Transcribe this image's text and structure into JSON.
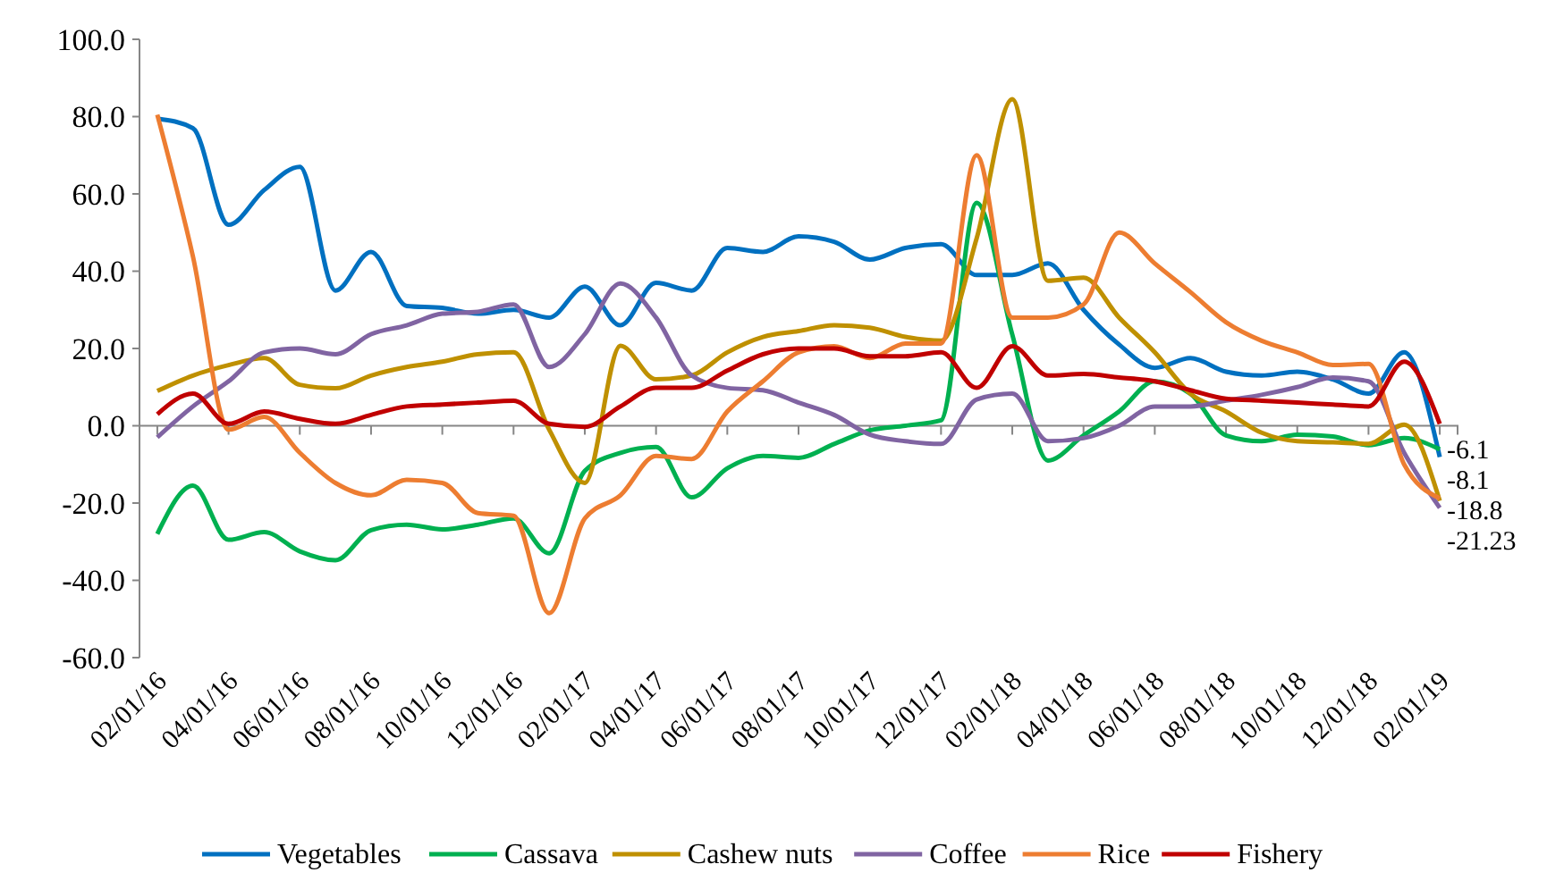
{
  "chart_data": {
    "type": "line",
    "categories": [
      "02/01/16",
      null,
      "04/01/16",
      null,
      "06/01/16",
      null,
      "08/01/16",
      null,
      "10/01/16",
      null,
      "12/01/16",
      null,
      "02/01/17",
      null,
      "04/01/17",
      null,
      "06/01/17",
      null,
      "08/01/17",
      null,
      "10/01/17",
      null,
      "12/01/17",
      null,
      "02/01/18",
      null,
      "04/01/18",
      null,
      "06/01/18",
      null,
      "08/01/18",
      null,
      "10/01/18",
      null,
      "12/01/18",
      null,
      "02/01/19"
    ],
    "series": [
      {
        "name": "Vegetables",
        "color": "#0070c0",
        "values": [
          79.5,
          77,
          52,
          61,
          67,
          35,
          45,
          31,
          30.5,
          29,
          30,
          28,
          36,
          26,
          37,
          35,
          46,
          45,
          49,
          47.6,
          43,
          46,
          47,
          39,
          39,
          42,
          30,
          21,
          15,
          17.5,
          14,
          13,
          14,
          12,
          8.3,
          19,
          -8.1
        ],
        "value_labels": [
          null,
          null,
          null,
          null,
          null,
          null,
          null,
          null,
          null,
          null,
          null,
          null,
          null,
          null,
          null,
          null,
          null,
          null,
          null,
          null,
          null,
          null,
          null,
          null,
          null,
          null,
          null,
          null,
          null,
          null,
          null,
          null,
          null,
          null,
          null,
          null,
          "-8.1"
        ]
      },
      {
        "name": "Cassava",
        "color": "#00b050",
        "values": [
          -28,
          -15.5,
          -29.5,
          -27.5,
          -32.5,
          -34.8,
          -27,
          -25.6,
          -26.8,
          -25.6,
          -24,
          -33,
          -11.7,
          -7,
          -5.5,
          -18.5,
          -11,
          -7.8,
          -8.3,
          -4.7,
          -1.2,
          0,
          1.4,
          57.7,
          23.6,
          -9,
          -2.5,
          3.7,
          11.5,
          8.3,
          -2.5,
          -4,
          -2.3,
          -2.8,
          -5,
          -3.2,
          -6.1
        ],
        "value_labels": [
          null,
          null,
          null,
          null,
          null,
          null,
          null,
          null,
          null,
          null,
          null,
          null,
          null,
          null,
          null,
          null,
          null,
          null,
          null,
          null,
          null,
          null,
          null,
          null,
          null,
          null,
          null,
          null,
          null,
          null,
          null,
          null,
          null,
          null,
          null,
          null,
          "-6.1"
        ]
      },
      {
        "name": "Cashew nuts",
        "color": "#bf9000",
        "values": [
          9,
          13,
          15.7,
          17.5,
          10.6,
          9.7,
          13,
          15.2,
          16.6,
          18.5,
          19,
          -1,
          -14.8,
          20.7,
          12,
          13,
          19,
          23,
          24.5,
          26,
          25.4,
          23,
          22,
          48.5,
          84.5,
          37.5,
          38.3,
          28,
          19,
          8.3,
          3.7,
          -1.8,
          -4,
          -4.3,
          -4.7,
          0.3,
          -19.4
        ]
      },
      {
        "name": "Coffee",
        "color": "#8064a2",
        "values": [
          -3,
          5,
          11.5,
          19,
          20,
          18.5,
          23.7,
          26,
          29,
          29.5,
          31.4,
          15.2,
          23.7,
          36.8,
          28,
          13,
          9.8,
          9.2,
          6,
          2.8,
          -2.3,
          -4,
          -4.7,
          6.8,
          8.3,
          -4,
          -3.2,
          0,
          5,
          5,
          6.5,
          8,
          10,
          12.5,
          11.5,
          -7,
          -21.23
        ],
        "value_labels": [
          null,
          null,
          null,
          null,
          null,
          null,
          null,
          null,
          null,
          null,
          null,
          null,
          null,
          null,
          null,
          null,
          null,
          null,
          null,
          null,
          null,
          null,
          null,
          null,
          null,
          null,
          null,
          null,
          null,
          null,
          null,
          null,
          null,
          null,
          null,
          null,
          "-21.23"
        ]
      },
      {
        "name": "Rice",
        "color": "#ed7d31",
        "values": [
          80.5,
          43.8,
          -1,
          2.3,
          -7,
          -14.8,
          -18,
          -14,
          -14.8,
          -22.6,
          -23.3,
          -48.5,
          -24,
          -18,
          -7.8,
          -8.6,
          3.7,
          11.5,
          19,
          20.6,
          17.5,
          21.3,
          21.3,
          70,
          28,
          28,
          31.4,
          50,
          42,
          34.6,
          26.8,
          22,
          19,
          15.7,
          16,
          -10,
          -18.8
        ],
        "value_labels": [
          null,
          null,
          null,
          null,
          null,
          null,
          null,
          null,
          null,
          null,
          null,
          null,
          null,
          null,
          null,
          null,
          null,
          null,
          null,
          null,
          null,
          null,
          null,
          null,
          null,
          null,
          null,
          null,
          null,
          null,
          null,
          null,
          null,
          null,
          null,
          null,
          "-18.8"
        ]
      },
      {
        "name": "Fishery",
        "color": "#c00000",
        "values": [
          3,
          8.3,
          0.5,
          3.7,
          1.8,
          0.5,
          2.8,
          5,
          5.5,
          6,
          6.5,
          0.5,
          -0.3,
          5,
          9.8,
          9.8,
          14.3,
          18.5,
          20,
          20,
          18,
          18,
          19,
          9.8,
          20.6,
          13,
          13.4,
          12.5,
          11.5,
          9.2,
          7,
          6.5,
          6,
          5.5,
          5,
          16.6,
          0.5
        ]
      }
    ],
    "ylim": [
      -60,
      100
    ],
    "yticks": [
      {
        "value": -60,
        "label": "-60.0"
      },
      {
        "value": -40,
        "label": "-40.0"
      },
      {
        "value": -20,
        "label": "-20.0"
      },
      {
        "value": 0,
        "label": "0.0"
      },
      {
        "value": 20,
        "label": "20.0"
      },
      {
        "value": 40,
        "label": "40.0"
      },
      {
        "value": 60,
        "label": "60.0"
      },
      {
        "value": 80,
        "label": "80.0"
      },
      {
        "value": 100,
        "label": "100.0"
      }
    ],
    "grid": false,
    "legend": "bottom",
    "marker": "none",
    "line_style": "solid"
  }
}
